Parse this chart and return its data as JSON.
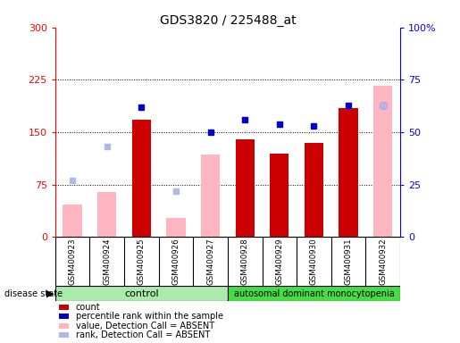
{
  "title": "GDS3820 / 225488_at",
  "samples": [
    "GSM400923",
    "GSM400924",
    "GSM400925",
    "GSM400926",
    "GSM400927",
    "GSM400928",
    "GSM400929",
    "GSM400930",
    "GSM400931",
    "GSM400932"
  ],
  "control_count": 5,
  "disease_label": "autosomal dominant monocytopenia",
  "control_label": "control",
  "ylim_left": [
    0,
    300
  ],
  "ylim_right": [
    0,
    100
  ],
  "yticks_left": [
    0,
    75,
    150,
    225,
    300
  ],
  "yticks_right": [
    0,
    25,
    50,
    75,
    100
  ],
  "ytick_labels_left": [
    "0",
    "75",
    "150",
    "225",
    "300"
  ],
  "ytick_labels_right": [
    "0",
    "25",
    "50",
    "75",
    "100%"
  ],
  "count_values": [
    null,
    null,
    168,
    null,
    null,
    140,
    120,
    135,
    184,
    null
  ],
  "percentile_values": [
    null,
    null,
    62,
    null,
    50,
    56,
    54,
    53,
    63,
    63
  ],
  "value_absent": [
    47,
    65,
    null,
    28,
    118,
    null,
    null,
    null,
    null,
    217
  ],
  "rank_absent": [
    27,
    43,
    null,
    22,
    null,
    null,
    null,
    null,
    null,
    63
  ],
  "bar_color_count": "#cc0000",
  "bar_color_value_absent": "#ffb6c1",
  "dot_color_percentile": "#0000cc",
  "dot_color_rank_absent": "#b0b8e8",
  "control_bg": "#aaeaaa",
  "disease_bg": "#44dd44",
  "sample_bg": "#d0d0d0",
  "legend_items": [
    {
      "color": "#cc0000",
      "marker": "s",
      "label": "count"
    },
    {
      "color": "#0000cc",
      "marker": "s",
      "label": "percentile rank within the sample"
    },
    {
      "color": "#ffb6c1",
      "marker": "s",
      "label": "value, Detection Call = ABSENT"
    },
    {
      "color": "#b0b8e8",
      "marker": "s",
      "label": "rank, Detection Call = ABSENT"
    }
  ]
}
